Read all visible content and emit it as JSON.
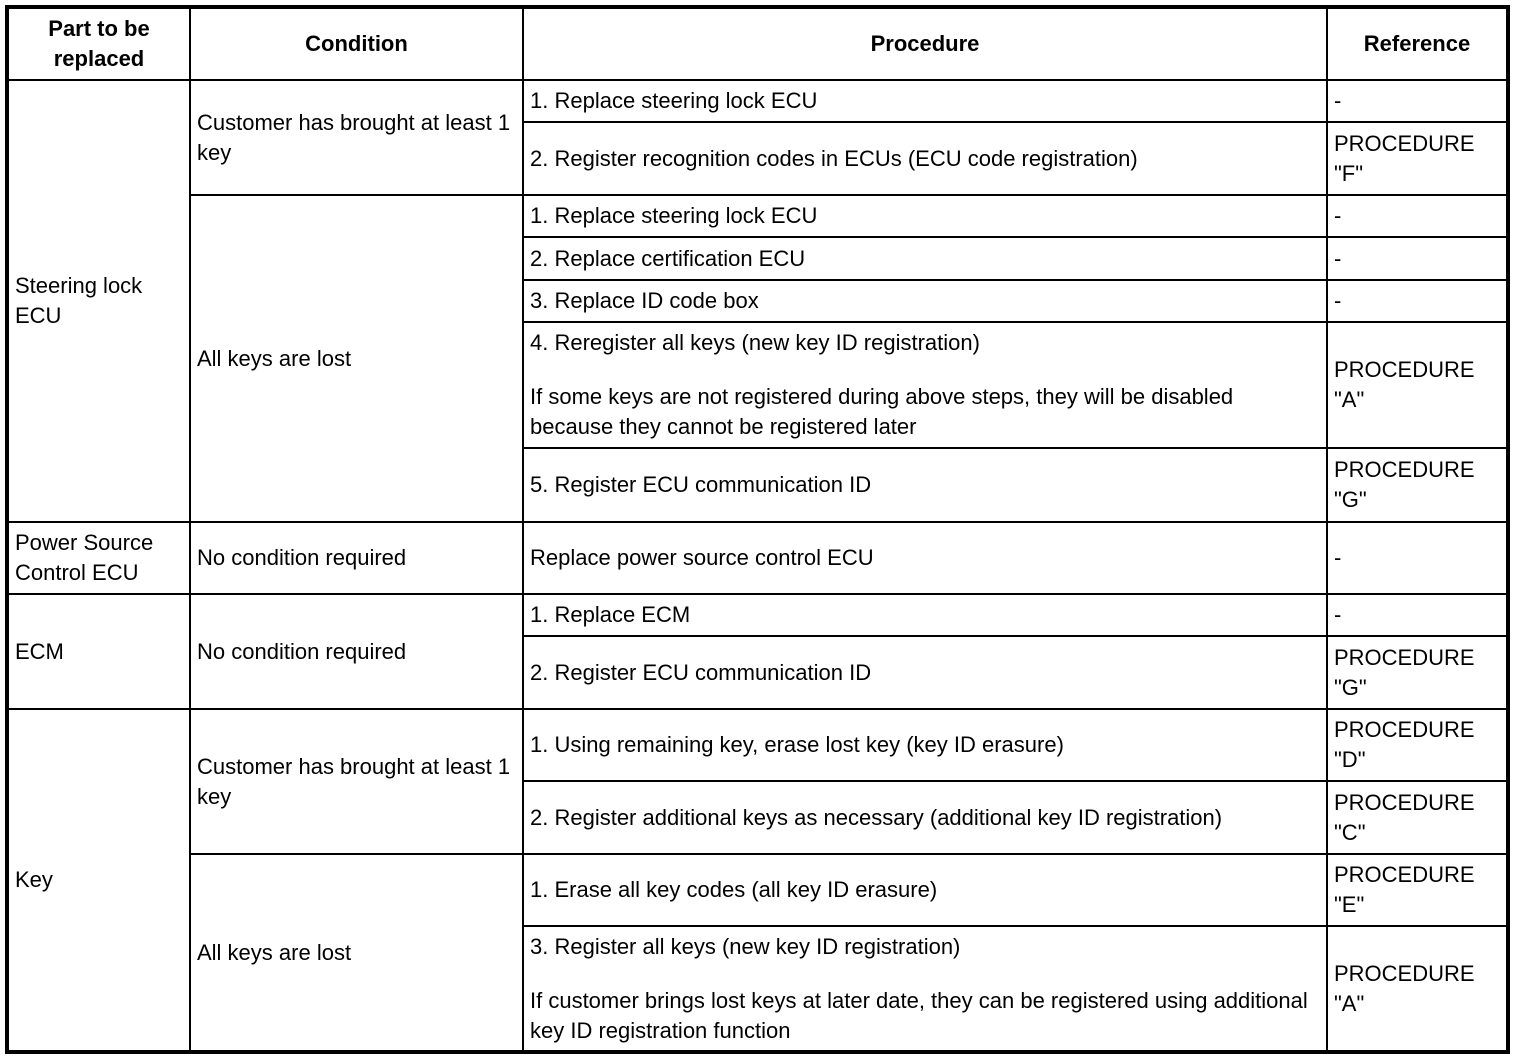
{
  "headers": {
    "part": "Part to be replaced",
    "condition": "Condition",
    "procedure": "Procedure",
    "reference": "Reference"
  },
  "groups": [
    {
      "part": "Steering lock ECU",
      "conditions": [
        {
          "text": "Customer has brought at least 1 key",
          "steps": [
            {
              "procedure": [
                "1. Replace steering lock ECU"
              ],
              "reference": "-"
            },
            {
              "procedure": [
                "2. Register recognition codes in ECUs (ECU code registration)"
              ],
              "reference": "PROCEDURE \"F\""
            }
          ]
        },
        {
          "text": "All keys are lost",
          "steps": [
            {
              "procedure": [
                "1. Replace steering lock ECU"
              ],
              "reference": "-"
            },
            {
              "procedure": [
                "2. Replace certification ECU"
              ],
              "reference": "-"
            },
            {
              "procedure": [
                "3. Replace ID code box"
              ],
              "reference": "-"
            },
            {
              "procedure": [
                "4. Reregister all keys (new key ID registration)",
                "If some keys are not registered during above steps, they will be disabled because they cannot be registered later"
              ],
              "reference": "PROCEDURE \"A\""
            },
            {
              "procedure": [
                "5. Register ECU communication ID"
              ],
              "reference": "PROCEDURE \"G\""
            }
          ]
        }
      ]
    },
    {
      "part": "Power Source Control ECU",
      "conditions": [
        {
          "text": "No condition required",
          "steps": [
            {
              "procedure": [
                "Replace power source control ECU"
              ],
              "reference": "-"
            }
          ]
        }
      ]
    },
    {
      "part": "ECM",
      "conditions": [
        {
          "text": "No condition required",
          "steps": [
            {
              "procedure": [
                "1. Replace ECM"
              ],
              "reference": "-"
            },
            {
              "procedure": [
                "2. Register ECU communication ID"
              ],
              "reference": "PROCEDURE \"G\""
            }
          ]
        }
      ]
    },
    {
      "part": "Key",
      "conditions": [
        {
          "text": "Customer has brought at least 1 key",
          "steps": [
            {
              "procedure": [
                "1. Using remaining key, erase lost key (key ID erasure)"
              ],
              "reference": "PROCEDURE \"D\""
            },
            {
              "procedure": [
                "2. Register additional keys as necessary (additional key ID registration)"
              ],
              "reference": "PROCEDURE \"C\""
            }
          ]
        },
        {
          "text": "All keys are lost",
          "steps": [
            {
              "procedure": [
                "1. Erase all key codes (all key ID erasure)"
              ],
              "reference": "PROCEDURE \"E\""
            },
            {
              "procedure": [
                "3. Register all keys (new key ID registration)",
                "If customer brings lost keys at later date, they can be registered using additional key ID registration function"
              ],
              "reference": "PROCEDURE \"A\""
            }
          ]
        }
      ]
    }
  ]
}
